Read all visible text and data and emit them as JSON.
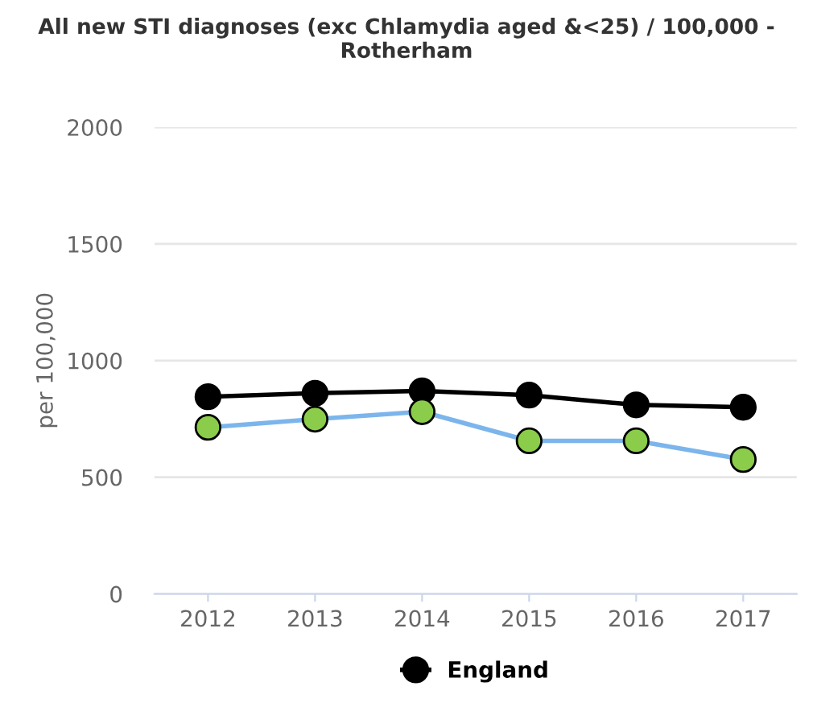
{
  "chart_data": {
    "type": "line",
    "title": "All new STI diagnoses (exc Chlamydia aged &<25) / 100,000 -\nRotherham",
    "ylabel": "per 100,000",
    "categories": [
      "2012",
      "2013",
      "2014",
      "2015",
      "2016",
      "2017"
    ],
    "series": [
      {
        "color": "#7cb5ec",
        "colors": [
          "#8bcc4a",
          "#8bcc4a",
          "#8bcc4a",
          "#8bcc4a",
          "#8bcc4a",
          "#8bcc4a"
        ],
        "values": [
          714,
          749,
          781,
          656,
          656,
          576
        ]
      },
      {
        "name": "England",
        "color": "#000000",
        "values": [
          845,
          860,
          870,
          852,
          810,
          800
        ]
      }
    ],
    "ylim": [
      0,
      2000
    ],
    "yticks": [
      0,
      500,
      1000,
      1500,
      2000
    ],
    "grid": "y",
    "legend": "bottom",
    "marker": "circle",
    "line_style": "solid"
  }
}
